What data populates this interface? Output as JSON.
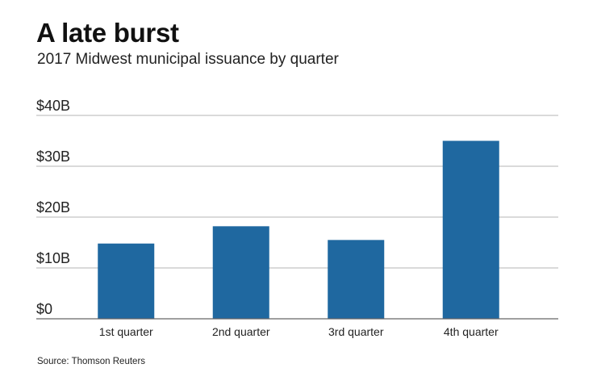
{
  "title": "A late burst",
  "subtitle": "2017 Midwest municipal issuance by quarter",
  "source": "Source: Thomson Reuters",
  "colors": {
    "bar": "#1f68a0",
    "grid": "#b5b5b5",
    "baseline": "#666666"
  },
  "chart_data": {
    "type": "bar",
    "categories": [
      "1st quarter",
      "2nd quarter",
      "3rd quarter",
      "4th quarter"
    ],
    "values": [
      14.8,
      18.2,
      15.5,
      35
    ],
    "ylim": [
      0,
      40
    ],
    "yticks": [
      0,
      10,
      20,
      30,
      40
    ],
    "ytick_labels": [
      "$0",
      "$10B",
      "$20B",
      "$30B",
      "$40B"
    ],
    "grid": true,
    "legend": "none"
  }
}
